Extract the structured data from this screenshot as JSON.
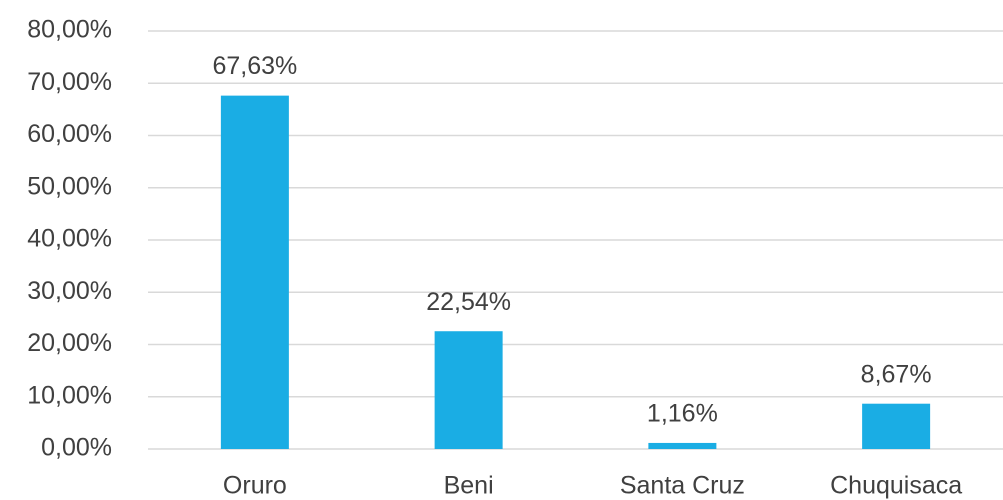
{
  "chart_data": {
    "type": "bar",
    "categories": [
      "Oruro",
      "Beni",
      "Santa Cruz",
      "Chuquisaca"
    ],
    "values": [
      67.63,
      22.54,
      1.16,
      8.67
    ],
    "value_labels": [
      "67,63%",
      "22,54%",
      "1,16%",
      "8,67%"
    ],
    "color": "#1aade4",
    "ylim": [
      0,
      80
    ],
    "yticks": [
      {
        "value": 0,
        "label": "0,00%"
      },
      {
        "value": 10,
        "label": "10,00%"
      },
      {
        "value": 20,
        "label": "20,00%"
      },
      {
        "value": 30,
        "label": "30,00%"
      },
      {
        "value": 40,
        "label": "40,00%"
      },
      {
        "value": 50,
        "label": "50,00%"
      },
      {
        "value": 60,
        "label": "60,00%"
      },
      {
        "value": 70,
        "label": "70,00%"
      },
      {
        "value": 80,
        "label": "80,00%"
      }
    ],
    "grid": true
  }
}
